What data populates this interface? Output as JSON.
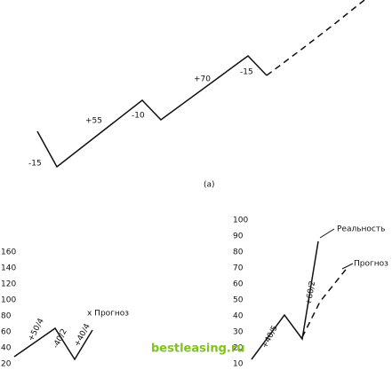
{
  "panel_a": {
    "caption": "(а)",
    "labels": [
      "-15",
      "+55",
      "-10",
      "+70",
      "-15"
    ]
  },
  "panel_b": {
    "axis_ticks": [
      "160",
      "140",
      "120",
      "100",
      "80",
      "60",
      "40",
      "20"
    ],
    "wave_labels": [
      "+50/4",
      "-40/2",
      "+40/4"
    ],
    "forecast_label": "x Прогноз"
  },
  "panel_c": {
    "axis_ticks": [
      "100",
      "90",
      "80",
      "70",
      "60",
      "50",
      "40",
      "30",
      "20",
      "10"
    ],
    "wave_labels": [
      "+40/5",
      "+60/2"
    ],
    "reality_label": "Реальность",
    "forecast_label": "Прогноз"
  },
  "watermark": "bestleasing.ru"
}
